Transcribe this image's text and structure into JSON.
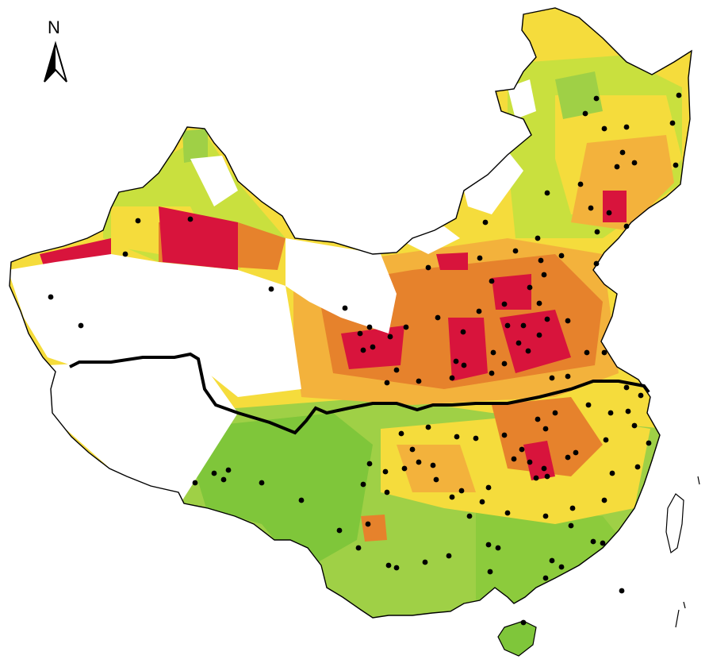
{
  "north_arrow": {
    "label": "N",
    "icon": "north-arrow-icon"
  },
  "legend_colors": {
    "green": "#7fc63a",
    "light_green": "#a8d44a",
    "yellow_green": "#d4e43c",
    "yellow": "#f5dc3c",
    "light_orange": "#f3b23c",
    "orange": "#e6822c",
    "red": "#d8143c",
    "no_data": "#ffffff",
    "boundary": "#000000"
  },
  "features": {
    "points": "monitoring-station-points",
    "divide_line": "north-south-divide-line"
  }
}
